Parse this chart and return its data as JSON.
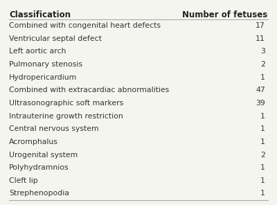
{
  "header_left": "Classification",
  "header_right": "Number of fetuses",
  "rows": [
    {
      "label": "Combined with congenital heart defects",
      "value": "17"
    },
    {
      "label": "Ventricular septal defect",
      "value": "11"
    },
    {
      "label": "Left aortic arch",
      "value": "3"
    },
    {
      "label": "Pulmonary stenosis",
      "value": "2"
    },
    {
      "label": "Hydropericardium",
      "value": "1"
    },
    {
      "label": "Combined with extracardiac abnormalities",
      "value": "47"
    },
    {
      "label": "Ultrasonographic soft markers",
      "value": "39"
    },
    {
      "label": "Intrauterine growth restriction",
      "value": "1"
    },
    {
      "label": "Central nervous system",
      "value": "1"
    },
    {
      "label": "Acromphalus",
      "value": "1"
    },
    {
      "label": "Urogenital system",
      "value": "2"
    },
    {
      "label": "Polyhydramnios",
      "value": "1"
    },
    {
      "label": "Cleft lip",
      "value": "1"
    },
    {
      "label": "Strephenopodia",
      "value": "1"
    }
  ],
  "background_color": "#f5f5f0",
  "header_font_size": 8.5,
  "row_font_size": 7.8,
  "text_color": "#333333",
  "header_color": "#222222",
  "line_color": "#aaaaaa"
}
